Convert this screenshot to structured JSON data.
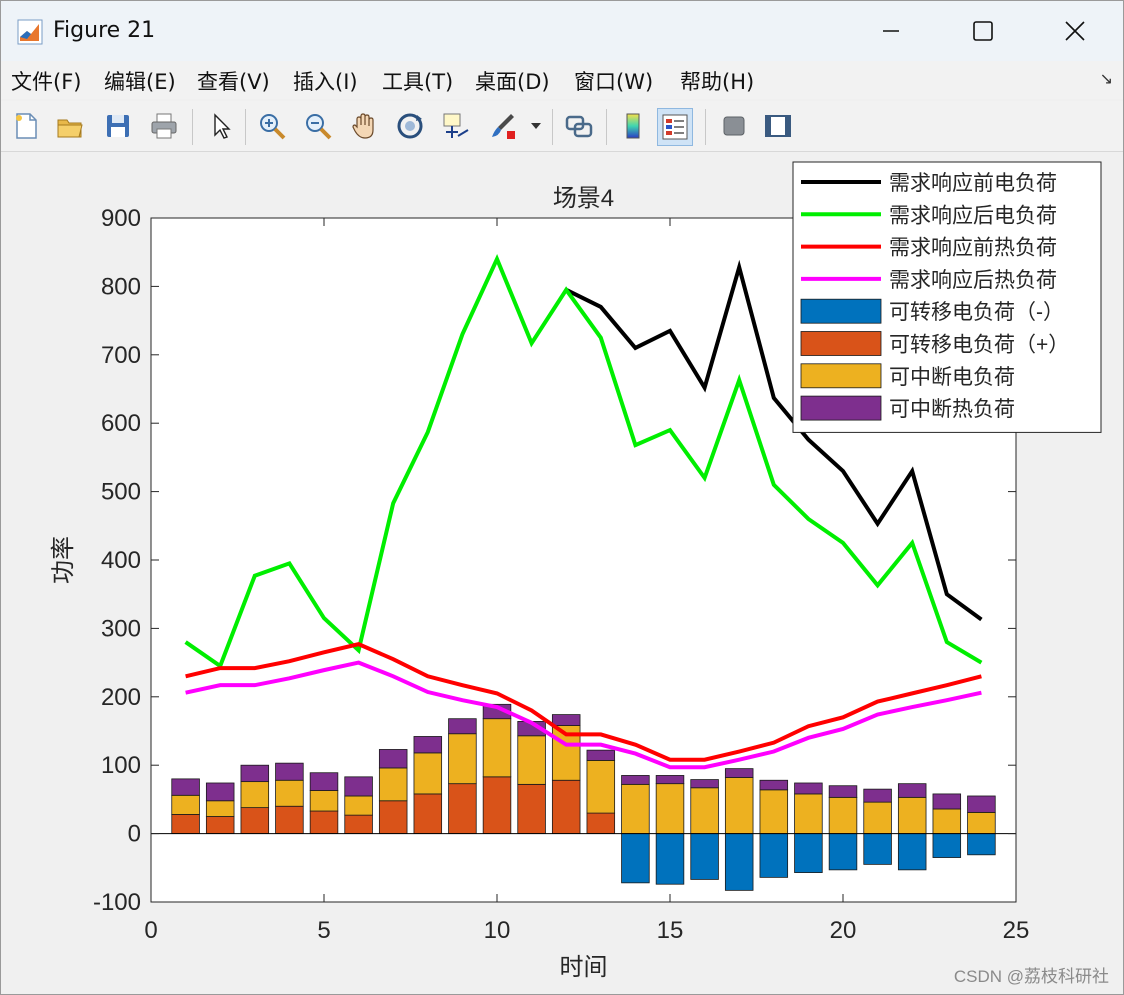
{
  "window": {
    "title": "Figure 21",
    "controls": {
      "minimize": "minimize",
      "maximize": "maximize",
      "close": "close"
    }
  },
  "menu": [
    "文件(F)",
    "编辑(E)",
    "查看(V)",
    "插入(I)",
    "工具(T)",
    "桌面(D)",
    "窗口(W)",
    "帮助(H)"
  ],
  "toolbar": [
    "new-file-icon",
    "open-folder-icon",
    "save-icon",
    "print-icon",
    "pointer-icon",
    "zoom-in-icon",
    "zoom-out-icon",
    "pan-hand-icon",
    "rotate-3d-icon",
    "data-cursor-icon",
    "brush-icon",
    "link-plot-icon",
    "colorbar-icon",
    "legend-icon",
    "hide-plot-tools-icon",
    "show-plot-tools-icon"
  ],
  "watermark": "CSDN @荔枝科研社",
  "chart_data": {
    "type": "bar",
    "title": "场景4",
    "xlabel": "时间",
    "ylabel": "功率",
    "xlim": [
      0,
      25
    ],
    "ylim": [
      -100,
      900
    ],
    "xticks": [
      0,
      5,
      10,
      15,
      20,
      25
    ],
    "yticks": [
      -100,
      0,
      100,
      200,
      300,
      400,
      500,
      600,
      700,
      800,
      900
    ],
    "grid": false,
    "legend_position": "top-right",
    "x": [
      1,
      2,
      3,
      4,
      5,
      6,
      7,
      8,
      9,
      10,
      11,
      12,
      13,
      14,
      15,
      16,
      17,
      18,
      19,
      20,
      21,
      22,
      23,
      24
    ],
    "lines": [
      {
        "name": "需求响应前电负荷",
        "color": "#000000",
        "x": [
          12,
          13,
          14,
          15,
          16,
          17,
          18,
          19,
          20,
          21,
          22,
          23,
          24
        ],
        "values": [
          795,
          770,
          710,
          735,
          652,
          828,
          637,
          576,
          530,
          453,
          530,
          350,
          313
        ]
      },
      {
        "name": "需求响应后电负荷",
        "color": "#00ee00",
        "values": [
          280,
          245,
          377,
          395,
          315,
          268,
          483,
          587,
          730,
          840,
          717,
          795,
          725,
          568,
          590,
          520,
          663,
          510,
          460,
          425,
          363,
          425,
          280,
          250
        ]
      },
      {
        "name": "需求响应前热负荷",
        "color": "#ff0000",
        "values": [
          230,
          242,
          242,
          252,
          265,
          277,
          255,
          230,
          217,
          205,
          180,
          145,
          145,
          130,
          108,
          108,
          120,
          133,
          157,
          170,
          193,
          205,
          217,
          230
        ]
      },
      {
        "name": "需求响应后热负荷",
        "color": "#ff00ff",
        "values": [
          206,
          217,
          217,
          227,
          239,
          250,
          230,
          207,
          195,
          185,
          162,
          130,
          130,
          117,
          97,
          97,
          108,
          120,
          140,
          153,
          174,
          185,
          195,
          206
        ]
      }
    ],
    "bars": [
      {
        "name": "可转移电负荷（-）",
        "color": "#0072bd",
        "values": [
          0,
          0,
          0,
          0,
          0,
          0,
          0,
          0,
          0,
          0,
          0,
          0,
          0,
          -72,
          -74,
          -67,
          -83,
          -64,
          -57,
          -53,
          -45,
          -53,
          -35,
          -31
        ]
      },
      {
        "name": "可转移电负荷（+）",
        "color": "#d95319",
        "values": [
          28,
          25,
          38,
          40,
          33,
          27,
          48,
          58,
          73,
          83,
          72,
          78,
          30,
          0,
          0,
          0,
          0,
          0,
          0,
          0,
          0,
          0,
          0,
          0
        ]
      },
      {
        "name": "可中断电负荷",
        "color": "#edb120",
        "values": [
          28,
          23,
          38,
          38,
          30,
          28,
          48,
          60,
          73,
          85,
          71,
          80,
          77,
          72,
          73,
          67,
          82,
          64,
          58,
          53,
          46,
          53,
          36,
          31
        ]
      },
      {
        "name": "可中断热负荷",
        "color": "#7e2f8e",
        "values": [
          24,
          26,
          24,
          25,
          26,
          28,
          27,
          24,
          22,
          21,
          21,
          16,
          15,
          13,
          12,
          12,
          13,
          14,
          16,
          17,
          19,
          20,
          22,
          24
        ]
      }
    ]
  }
}
